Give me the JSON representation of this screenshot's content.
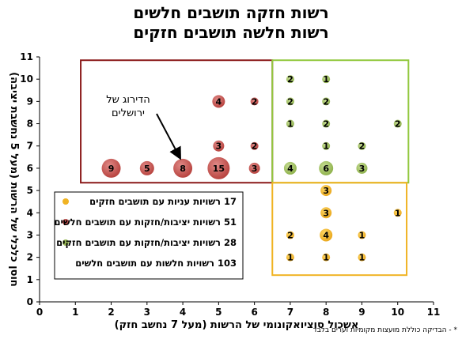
{
  "titles": [
    "רשות חזקה תושבים חלשים",
    "רשות חלשה תושבים חזקים"
  ],
  "footnote": "* - הבדיקה כוללת מועצות מקומיות וערים בלבד",
  "chart_data": {
    "type": "scatter",
    "xlabel": "אשכול סוציואקונומי של הרשות (מעל 7 נחשב חזק)",
    "ylabel": "חוסן כלכלי של הרשות (מעל 5 נחשבת יציבה)",
    "xlim": [
      0,
      11
    ],
    "ylim": [
      0,
      11
    ],
    "xticks": [
      "0",
      "1",
      "2",
      "3",
      "4",
      "5",
      "6",
      "7",
      "8",
      "9",
      "10",
      "11"
    ],
    "yticks": [
      "0",
      "1",
      "2",
      "3",
      "4",
      "5",
      "6",
      "7",
      "8",
      "9",
      "10",
      "11"
    ],
    "grid": false,
    "colors": {
      "red": "#c0504d",
      "green": "#9bbb59",
      "yellow": "#f0b323",
      "red_box": "#8b1a1a",
      "green_box": "#92c83e",
      "yellow_box": "#f0b323"
    },
    "series": [
      {
        "color": "red",
        "points": [
          {
            "x": 2,
            "y": 6,
            "v": 9
          },
          {
            "x": 3,
            "y": 6,
            "v": 5
          },
          {
            "x": 4,
            "y": 6,
            "v": 8
          },
          {
            "x": 5,
            "y": 6,
            "v": 15
          },
          {
            "x": 6,
            "y": 6,
            "v": 3
          },
          {
            "x": 5,
            "y": 7,
            "v": 3
          },
          {
            "x": 6,
            "y": 7,
            "v": 2
          },
          {
            "x": 5,
            "y": 9,
            "v": 4
          },
          {
            "x": 6,
            "y": 9,
            "v": 2
          }
        ]
      },
      {
        "color": "green",
        "points": [
          {
            "x": 7,
            "y": 6,
            "v": 4
          },
          {
            "x": 8,
            "y": 6,
            "v": 6
          },
          {
            "x": 9,
            "y": 6,
            "v": 3
          },
          {
            "x": 8,
            "y": 7,
            "v": 1
          },
          {
            "x": 9,
            "y": 7,
            "v": 2
          },
          {
            "x": 7,
            "y": 8,
            "v": 1
          },
          {
            "x": 8,
            "y": 8,
            "v": 2
          },
          {
            "x": 10,
            "y": 8,
            "v": 2
          },
          {
            "x": 7,
            "y": 9,
            "v": 2
          },
          {
            "x": 8,
            "y": 9,
            "v": 2
          },
          {
            "x": 7,
            "y": 10,
            "v": 2
          },
          {
            "x": 8,
            "y": 10,
            "v": 1
          }
        ]
      },
      {
        "color": "yellow",
        "points": [
          {
            "x": 7,
            "y": 2,
            "v": 1
          },
          {
            "x": 8,
            "y": 2,
            "v": 1
          },
          {
            "x": 9,
            "y": 2,
            "v": 1
          },
          {
            "x": 7,
            "y": 3,
            "v": 2
          },
          {
            "x": 8,
            "y": 3,
            "v": 4
          },
          {
            "x": 9,
            "y": 3,
            "v": 1
          },
          {
            "x": 8,
            "y": 4,
            "v": 3
          },
          {
            "x": 10,
            "y": 4,
            "v": 1
          },
          {
            "x": 8,
            "y": 5,
            "v": 3
          }
        ]
      }
    ],
    "boxes": [
      {
        "color": "red_box",
        "x0": 1.15,
        "x1": 6.5,
        "y0": 5.35,
        "y1": 10.85
      },
      {
        "color": "green_box",
        "x0": 6.5,
        "x1": 10.3,
        "y0": 5.35,
        "y1": 10.85
      },
      {
        "color": "yellow_box",
        "x0": 6.5,
        "x1": 10.25,
        "y0": 1.2,
        "y1": 5.35
      }
    ],
    "annotation": {
      "lines": [
        "הדירוג של",
        "ירושלים"
      ],
      "target": {
        "x": 4,
        "y": 6
      }
    },
    "legend": {
      "placement": "lower-left",
      "entries": [
        {
          "color": "yellow",
          "label": "17 רשויות עניות עם תושבים חזקים"
        },
        {
          "color": "red",
          "label": "51 רשויות יציבות/חזקות עם תושבים חלשים"
        },
        {
          "color": "green",
          "label": "28 רשויות יציבות/חזקות עם תושבים חזקים"
        },
        {
          "color": "",
          "label": "103 רשויות חלשות עם תושבים חלשים"
        }
      ]
    }
  }
}
